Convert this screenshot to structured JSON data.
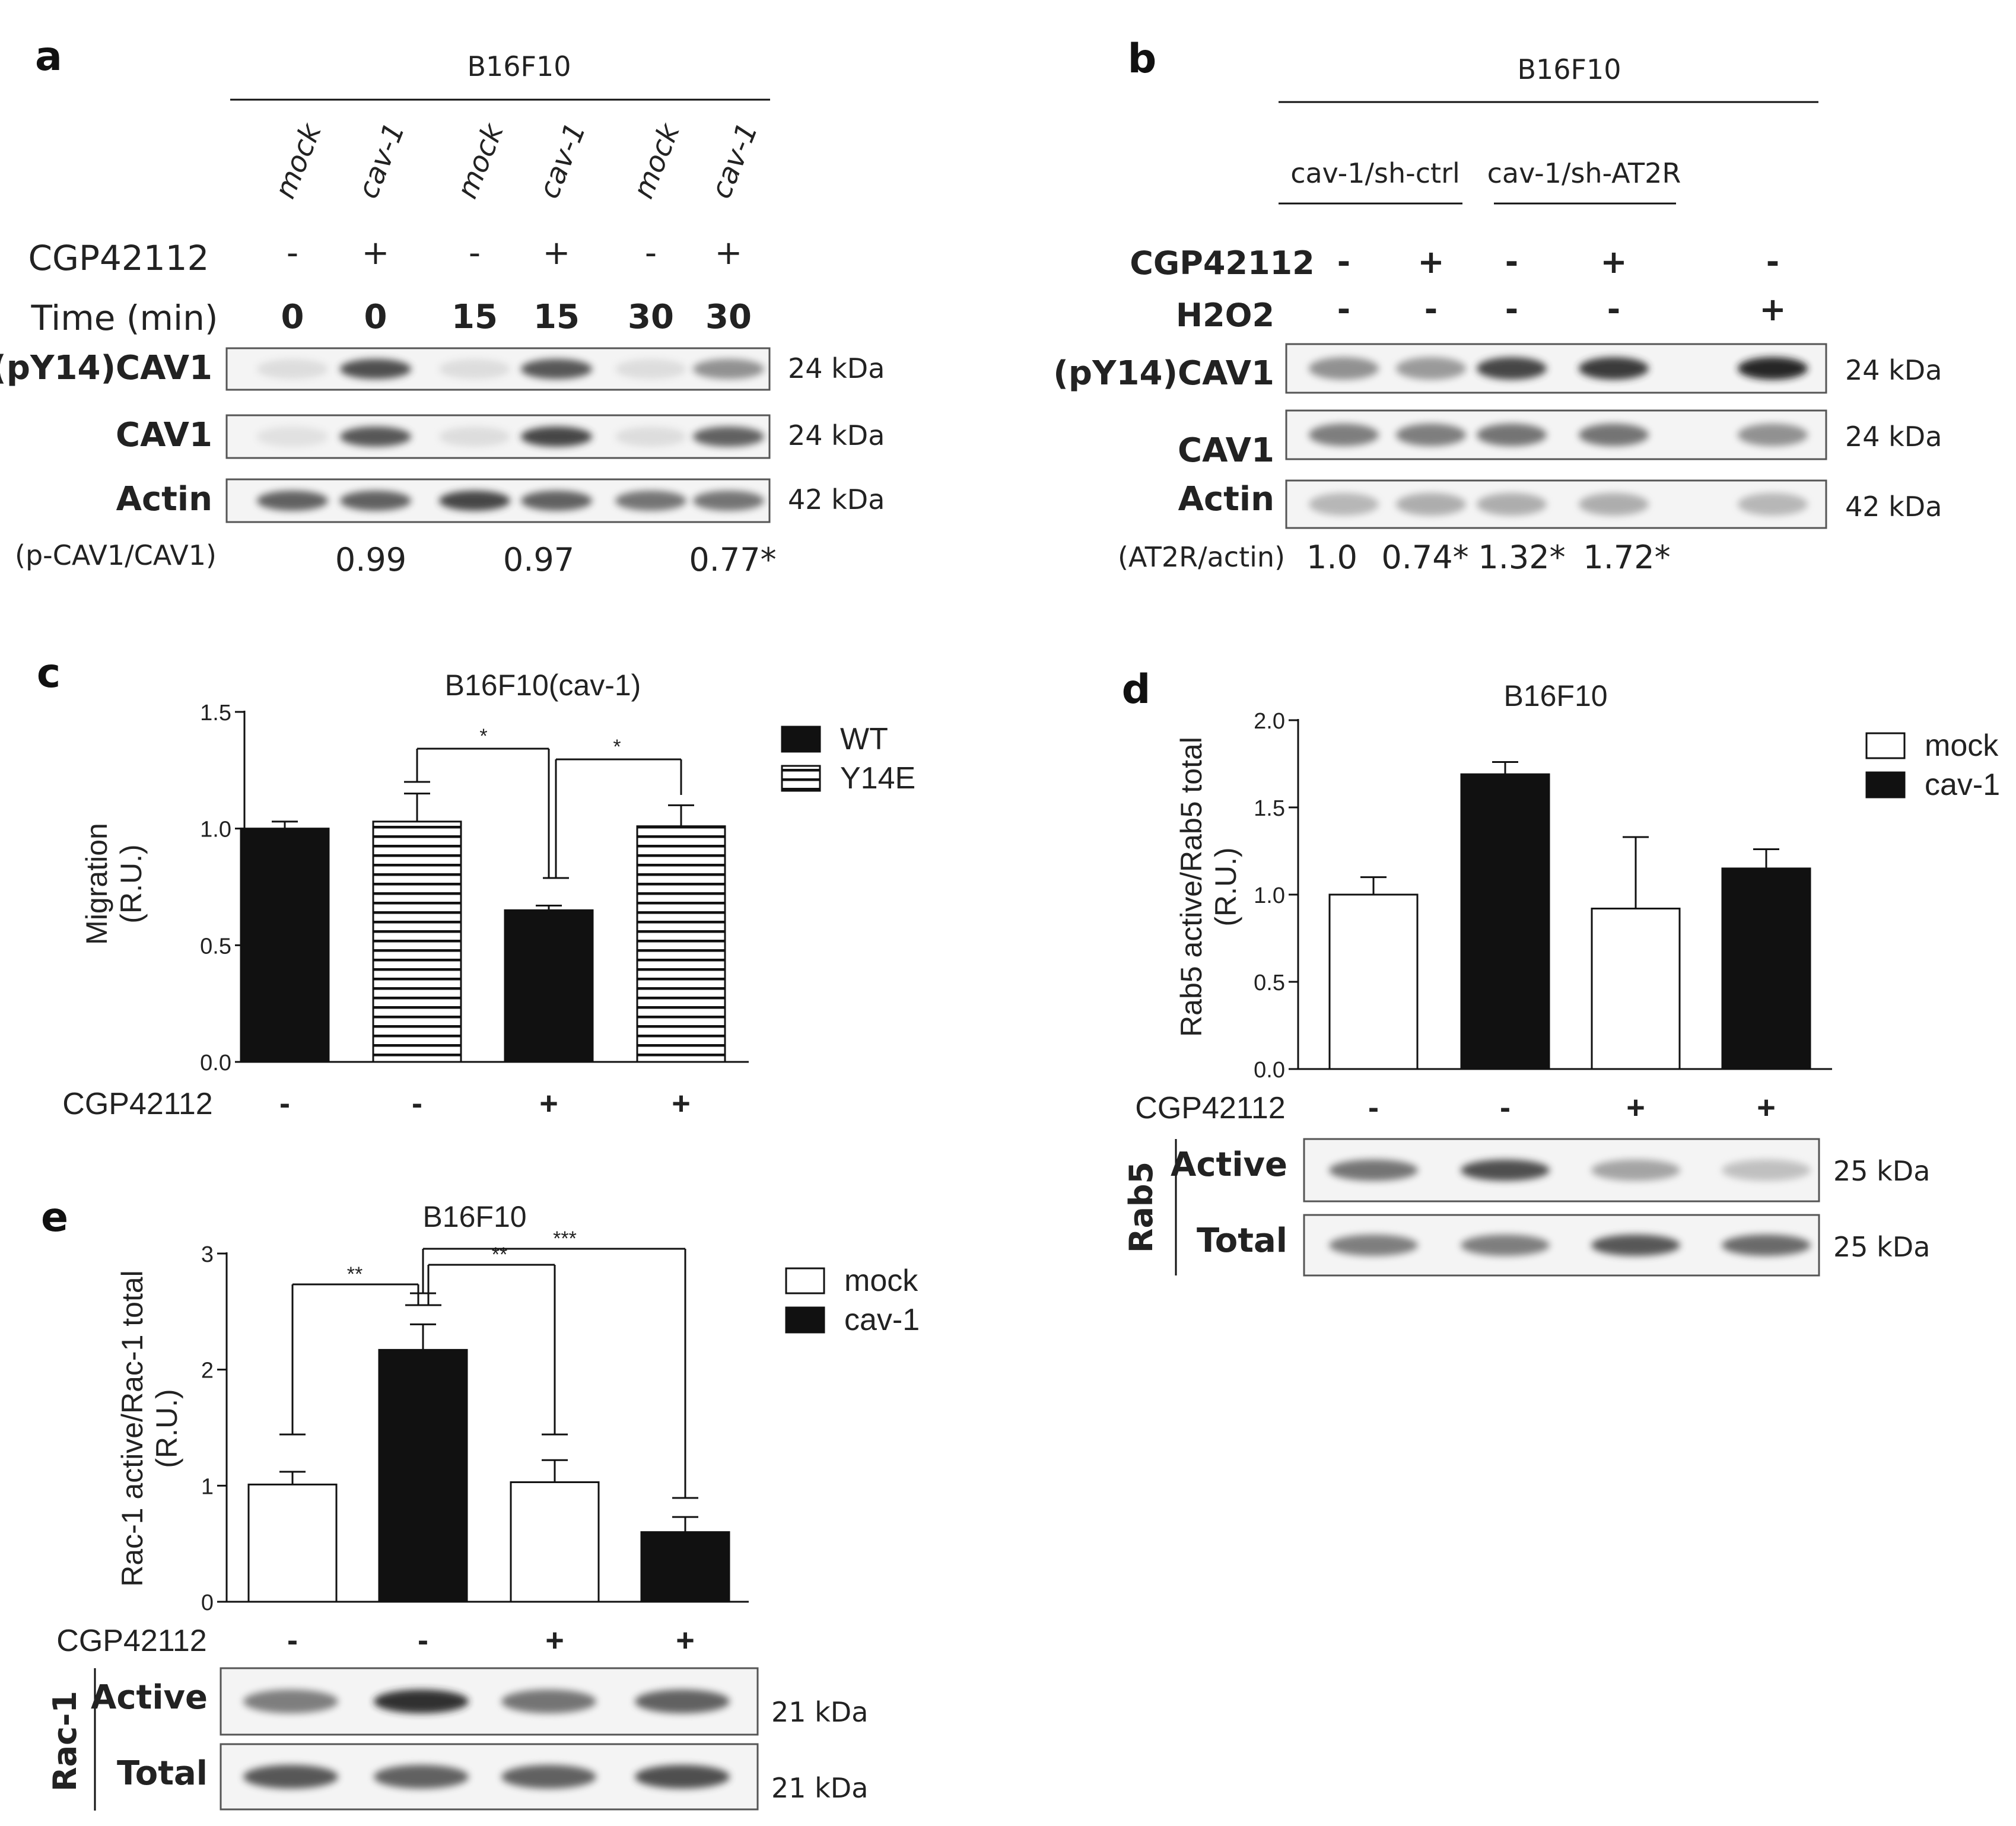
{
  "colors": {
    "ink": "#111111",
    "band": "#2a2a2a",
    "blot_bg": "#f4f4f4",
    "blot_border": "#555555",
    "stripe": "#111111"
  },
  "panel_a": {
    "letter": "a",
    "cell_line": "B16F10",
    "lanes": [
      "mock",
      "cav-1",
      "mock",
      "cav-1",
      "mock",
      "cav-1"
    ],
    "treatment_label": "CGP42112",
    "treatment": [
      "-",
      "+",
      "-",
      "+",
      "-",
      "+"
    ],
    "time_label": "Time (min)",
    "time": [
      "0",
      "0",
      "15",
      "15",
      "30",
      "30"
    ],
    "blots": [
      {
        "name": "(pY14)CAV1",
        "kda": "24 kDa",
        "intensity": [
          0.05,
          0.8,
          0.05,
          0.75,
          0.05,
          0.45
        ]
      },
      {
        "name": "CAV1",
        "kda": "24 kDa",
        "intensity": [
          0.03,
          0.75,
          0.05,
          0.85,
          0.05,
          0.7
        ]
      },
      {
        "name": "Actin",
        "kda": "42 kDa",
        "intensity": [
          0.7,
          0.7,
          0.85,
          0.7,
          0.6,
          0.6
        ]
      }
    ],
    "ratio_label": "(p-CAV1/CAV1)",
    "ratios": [
      "0.99",
      "0.97",
      "0.77*"
    ]
  },
  "panel_b": {
    "letter": "b",
    "cell_line": "B16F10",
    "groups": [
      "cav-1/sh-ctrl",
      "cav-1/sh-AT2R"
    ],
    "treatment_label": "CGP42112",
    "treatment": [
      "-",
      "+",
      "-",
      "+",
      "-"
    ],
    "h2o2_label": "H2O2",
    "h2o2": [
      "-",
      "-",
      "-",
      "-",
      "+"
    ],
    "blots": [
      {
        "name": "(pY14)CAV1",
        "kda": "24 kDa",
        "intensity": [
          0.45,
          0.4,
          0.85,
          0.9,
          1.0
        ]
      },
      {
        "name": "CAV1",
        "kda": "24 kDa",
        "intensity": [
          0.55,
          0.55,
          0.6,
          0.6,
          0.45
        ]
      },
      {
        "name": "Actin",
        "kda": "42 kDa",
        "intensity": [
          0.25,
          0.3,
          0.3,
          0.3,
          0.25
        ]
      }
    ],
    "ratio_label": "(AT2R/actin)",
    "ratios": [
      "1.0",
      "0.74*",
      "1.32*",
      "1.72*"
    ]
  },
  "panel_d_blot": {
    "protein": "Rab5",
    "rows": [
      {
        "name": "Active",
        "kda": "25 kDa",
        "intensity": [
          0.6,
          0.8,
          0.35,
          0.2
        ]
      },
      {
        "name": "Total",
        "kda": "25 kDa",
        "intensity": [
          0.55,
          0.55,
          0.75,
          0.65
        ]
      }
    ]
  },
  "panel_e_blot": {
    "protein": "Rac-1",
    "rows": [
      {
        "name": "Active",
        "kda": "21 kDa",
        "intensity": [
          0.55,
          0.95,
          0.6,
          0.7
        ]
      },
      {
        "name": "Total",
        "kda": "21 kDa",
        "intensity": [
          0.75,
          0.7,
          0.7,
          0.8
        ]
      }
    ]
  },
  "chart_data": [
    {
      "panel": "c",
      "type": "bar",
      "title": "B16F10(cav-1)",
      "ylabel": "Migration (R.U.)",
      "ylim": [
        0,
        1.5
      ],
      "yticks": [
        "0.0",
        "0.5",
        "1.0",
        "1.5"
      ],
      "xlabel_row": "CGP42112",
      "categories": [
        "-",
        "-",
        "+",
        "+"
      ],
      "bars": [
        {
          "series": "WT",
          "value": 1.0,
          "error": 0.03
        },
        {
          "series": "Y14E",
          "value": 1.03,
          "error": 0.12
        },
        {
          "series": "WT",
          "value": 0.65,
          "error": 0.02
        },
        {
          "series": "Y14E",
          "value": 1.01,
          "error": 0.09
        }
      ],
      "legend": [
        {
          "name": "WT",
          "fill": "black"
        },
        {
          "name": "Y14E",
          "fill": "hatched"
        }
      ],
      "significance": [
        {
          "from": 1,
          "to": 2,
          "label": "*"
        },
        {
          "from": 2,
          "to": 3,
          "label": "*"
        }
      ]
    },
    {
      "panel": "d",
      "type": "bar",
      "title": "B16F10",
      "ylabel": "Rab5 active/Rab5 total (R.U.)",
      "ylim": [
        0,
        2.0
      ],
      "yticks": [
        "0.0",
        "0.5",
        "1.0",
        "1.5",
        "2.0"
      ],
      "xlabel_row": "CGP42112",
      "categories": [
        "-",
        "-",
        "+",
        "+"
      ],
      "bars": [
        {
          "series": "mock",
          "value": 1.0,
          "error": 0.1
        },
        {
          "series": "cav-1",
          "value": 1.69,
          "error": 0.07
        },
        {
          "series": "mock",
          "value": 0.92,
          "error": 0.41
        },
        {
          "series": "cav-1",
          "value": 1.15,
          "error": 0.11
        }
      ],
      "legend": [
        {
          "name": "mock",
          "fill": "white"
        },
        {
          "name": "cav-1",
          "fill": "black"
        }
      ]
    },
    {
      "panel": "e",
      "type": "bar",
      "title": "B16F10",
      "ylabel": "Rac-1 active/Rac-1 total (R.U.)",
      "ylim": [
        0,
        3
      ],
      "yticks": [
        "0",
        "1",
        "2",
        "3"
      ],
      "xlabel_row": "CGP42112",
      "categories": [
        "-",
        "-",
        "+",
        "+"
      ],
      "bars": [
        {
          "series": "mock",
          "value": 1.01,
          "error": 0.11
        },
        {
          "series": "cav-1",
          "value": 2.17,
          "error": 0.22
        },
        {
          "series": "mock",
          "value": 1.03,
          "error": 0.19
        },
        {
          "series": "cav-1",
          "value": 0.6,
          "error": 0.13
        }
      ],
      "legend": [
        {
          "name": "mock",
          "fill": "white"
        },
        {
          "name": "cav-1",
          "fill": "black"
        }
      ],
      "significance": [
        {
          "from": 0,
          "to": 1,
          "label": "**"
        },
        {
          "from": 1,
          "to": 2,
          "label": "**"
        },
        {
          "from": 1,
          "to": 3,
          "label": "***"
        }
      ]
    }
  ]
}
